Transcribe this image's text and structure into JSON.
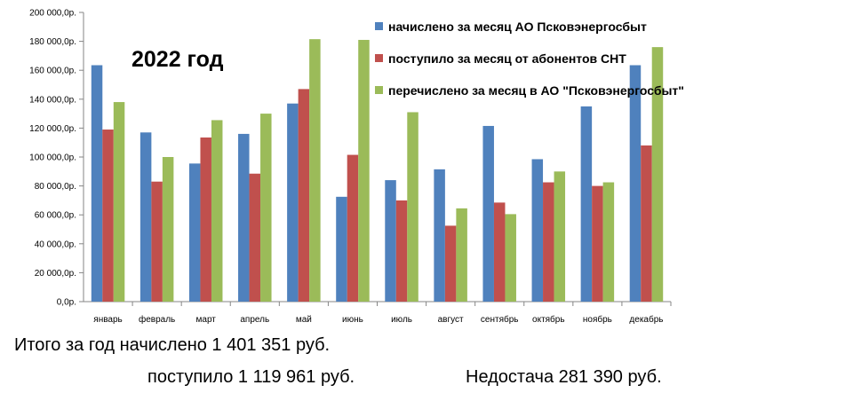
{
  "chart_data": {
    "type": "bar",
    "title": "2022 год",
    "categories": [
      "январь",
      "февраль",
      "март",
      "апрель",
      "май",
      "июнь",
      "июль",
      "август",
      "сентябрь",
      "октябрь",
      "ноябрь",
      "декабрь"
    ],
    "series": [
      {
        "name": "начислено за месяц АО Псковэнергосбыт",
        "color": "#4F81BD",
        "values": [
          163500,
          117000,
          95500,
          116000,
          137000,
          72500,
          84000,
          91500,
          121500,
          98500,
          135000,
          163500
        ]
      },
      {
        "name": "поступило за месяц от абонентов СНТ",
        "color": "#C0504D",
        "values": [
          119000,
          83000,
          113500,
          88500,
          147000,
          101500,
          70000,
          52500,
          68500,
          82500,
          80000,
          108000
        ]
      },
      {
        "name": "перечислено за месяц в АО \"Псковэнергосбыт\"",
        "color": "#9BBB59",
        "values": [
          138000,
          100000,
          125500,
          130000,
          181500,
          181000,
          131000,
          64500,
          60500,
          90000,
          82500,
          176000
        ]
      }
    ],
    "yticks": [
      "0,0р.",
      "20 000,0р.",
      "40 000,0р.",
      "60 000,0р.",
      "80 000,0р.",
      "100 000,0р.",
      "120 000,0р.",
      "140 000,0р.",
      "160 000,0р.",
      "180 000,0р.",
      "200 000,0р."
    ],
    "ylim": [
      0,
      200000
    ],
    "grid": false,
    "legend": "top-right"
  },
  "summary": {
    "line1": "Итого за год  начислено 1 401 351 руб.",
    "line2": "поступило 1 119 961 руб.",
    "line3": "Недостача 281 390 руб."
  }
}
